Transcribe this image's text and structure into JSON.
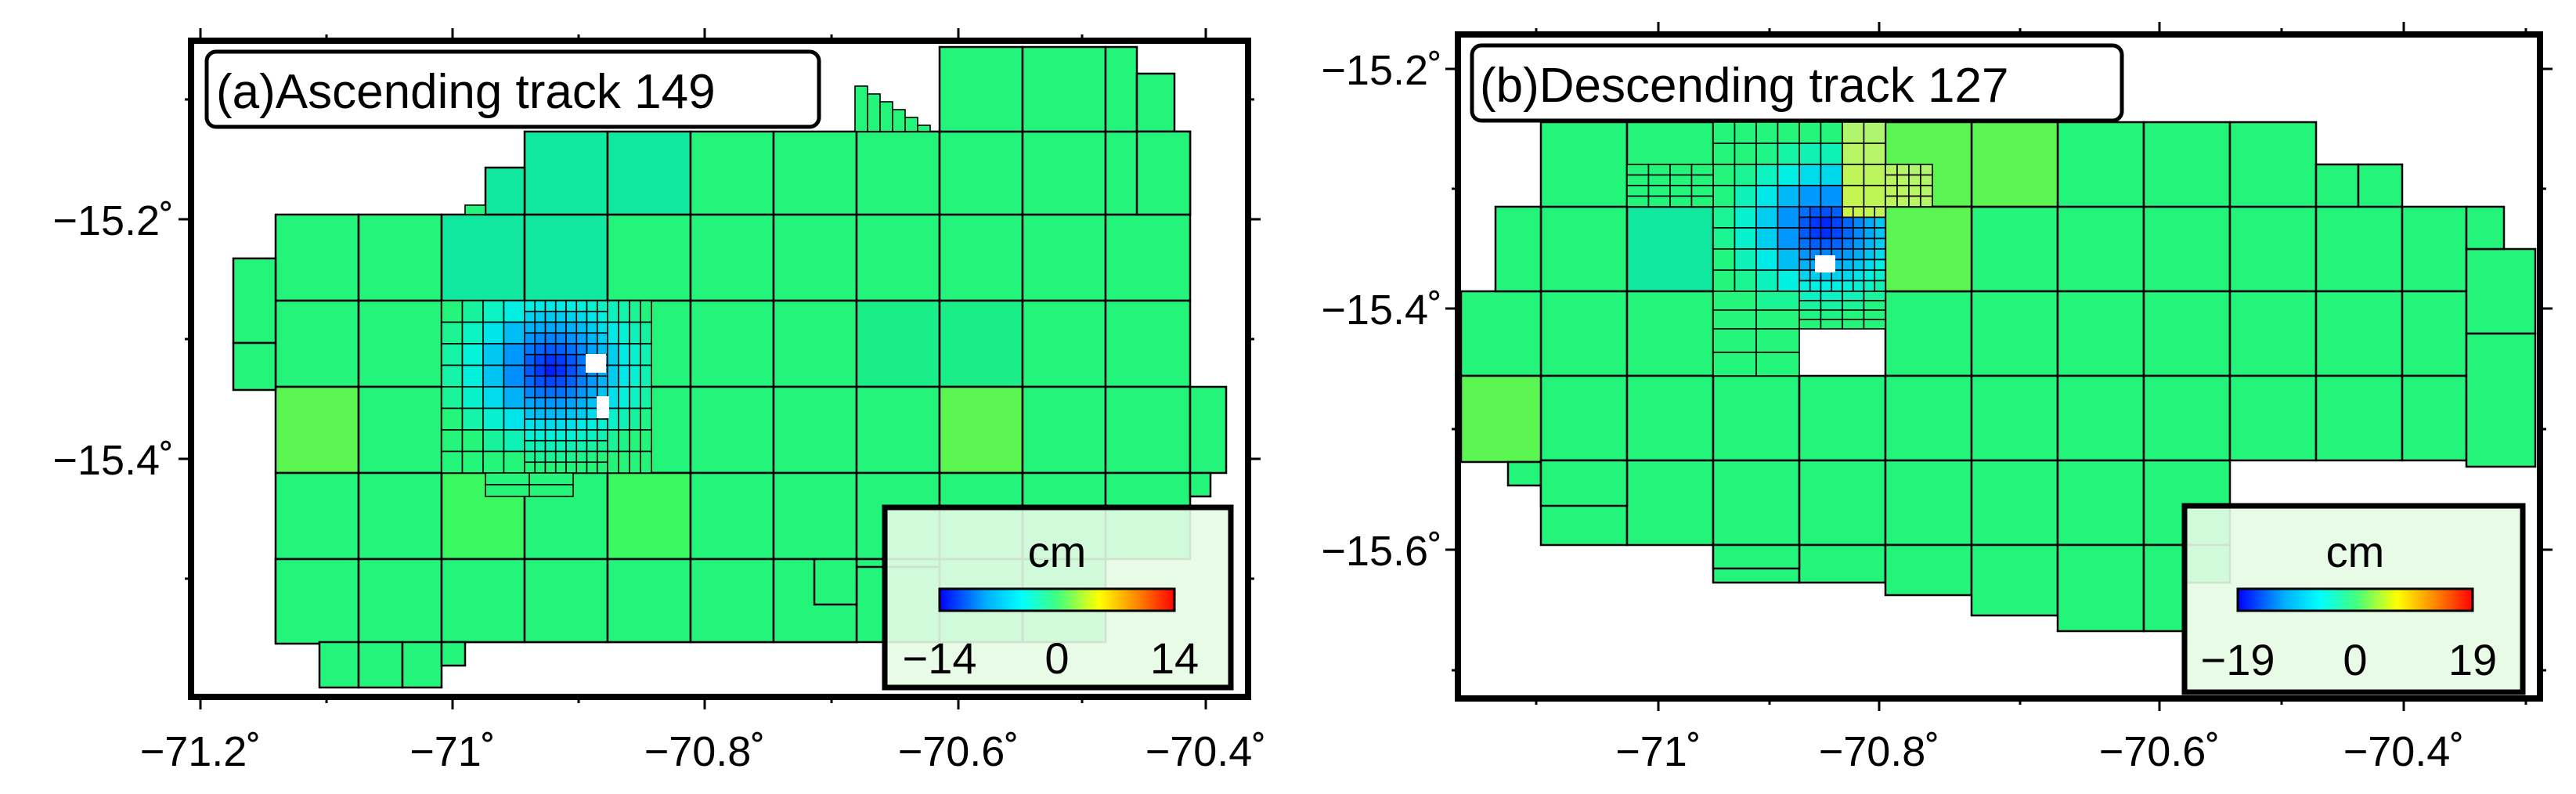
{
  "colors": {
    "base_cell": "#22f57a",
    "cell_variants": [
      "#18f07e",
      "#2cf878",
      "#1aee88",
      "#5af550",
      "#3af860",
      "#10e8a0"
    ],
    "grid_stroke": "#000000",
    "colormap": [
      "#0000ff",
      "#00b0ff",
      "#00ffff",
      "#40ff80",
      "#ffff00",
      "#ff8000",
      "#ff0000"
    ]
  },
  "chart_data": [
    {
      "type": "heatmap",
      "title": "(a)Ascending track 149",
      "xlim": [
        -71.24,
        -70.28
      ],
      "ylim": [
        -15.595,
        -15.045
      ],
      "xticks": [
        -71.2,
        -71.0,
        -70.8,
        -70.6,
        -70.4
      ],
      "xtick_labels": [
        "−71.2˚",
        "−71˚",
        "−70.8˚",
        "−70.6˚",
        "−70.4˚"
      ],
      "yticks": [
        -15.2,
        -15.4
      ],
      "ytick_labels": [
        "−15.2˚",
        "−15.4˚"
      ],
      "colorbar": {
        "label": "cm",
        "min": -14,
        "max": 14,
        "tick_labels": [
          "−14",
          "0",
          "14"
        ],
        "placement": "bottom-right"
      },
      "anomaly_center": [
        -70.885,
        -15.33
      ],
      "anomaly_min_cm": -14
    },
    {
      "type": "heatmap",
      "title": "(b)Descending track 127",
      "xlim": [
        -71.18,
        -70.25
      ],
      "ylim": [
        -15.725,
        -15.18
      ],
      "xticks": [
        -71.0,
        -70.8,
        -70.6,
        -70.4
      ],
      "xtick_labels": [
        "−71˚",
        "−70.8˚",
        "−70.6˚",
        "−70.4˚"
      ],
      "yticks": [
        -15.2,
        -15.4,
        -15.6
      ],
      "ytick_labels": [
        "−15.2˚",
        "−15.4˚",
        "−15.6˚"
      ],
      "colorbar": {
        "label": "cm",
        "min": -19,
        "max": 19,
        "tick_labels": [
          "−19",
          "0",
          "19"
        ],
        "placement": "bottom-right"
      },
      "anomaly_center": [
        -70.865,
        -15.335
      ],
      "anomaly_min_cm": -19
    }
  ]
}
